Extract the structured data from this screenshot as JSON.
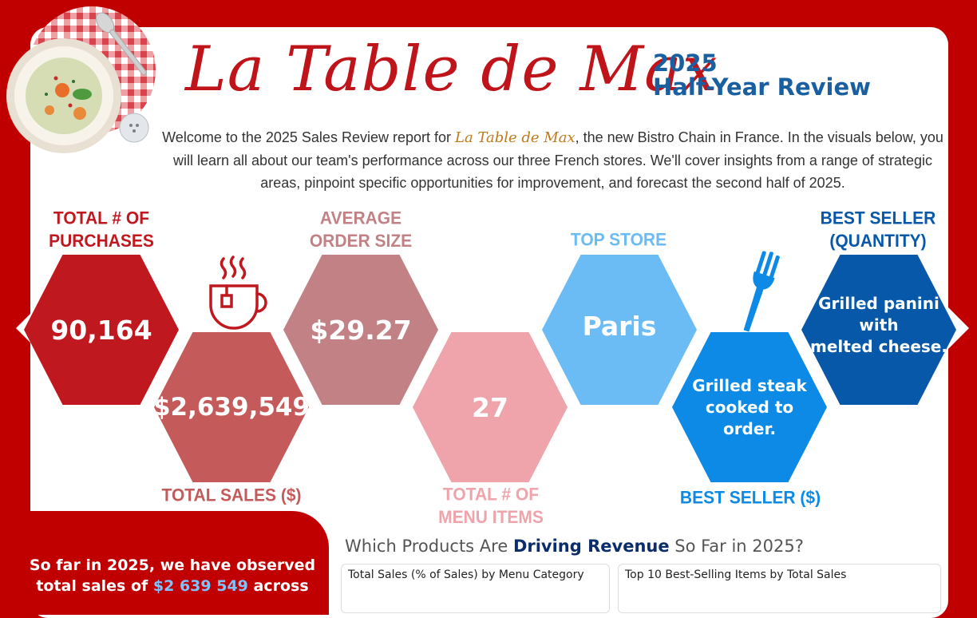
{
  "header": {
    "brand": "La Table de Max",
    "year": "2025",
    "subtitle": "Half-Year Review",
    "intro_before": "Welcome to the 2025 Sales Review report for ",
    "intro_brand": "La Table de Max",
    "intro_after": ", the new Bistro Chain in France. In the visuals below, you will learn all about our team's performance across our three French stores.  We'll cover insights from a range of strategic areas, pinpoint specific opportunities for improvement, and forecast the second half of 2025."
  },
  "kpis": {
    "purchases": {
      "label1": "TOTAL # OF",
      "label2": "PURCHASES",
      "value": "90,164",
      "color": "#c0181f"
    },
    "sales": {
      "label": "TOTAL SALES ($)",
      "value": "$2,639,549",
      "color": "#c55a5b"
    },
    "order_size": {
      "label1": "AVERAGE",
      "label2": "ORDER SIZE",
      "value": "$29.27",
      "color": "#c28285"
    },
    "menu_items": {
      "label1": "TOTAL # OF",
      "label2": "MENU ITEMS",
      "value": "27",
      "color": "#efa3aa"
    },
    "top_store": {
      "label": "TOP STORE",
      "value": "Paris",
      "color": "#6bbcf5"
    },
    "best_dollar": {
      "label": "BEST SELLER ($)",
      "value1": "Grilled steak",
      "value2": "cooked to order.",
      "color": "#0d8ae6"
    },
    "best_qty": {
      "label1": "BEST SELLER",
      "label2": "(QUANTITY)",
      "value1": "Grilled panini with",
      "value2": "melted cheese.",
      "color": "#0758a8"
    }
  },
  "summary": {
    "line1": "So far in 2025, we have observed",
    "line2_a": "total sales of ",
    "line2_value": "$2 639 549",
    "line2_b": " across"
  },
  "section": {
    "title_a": "Which Products Are ",
    "title_b": "Driving Revenue",
    "title_c": " So Far in 2025?",
    "chart1_title": "Total Sales (% of Sales) by Menu Category",
    "chart2_title": "Top 10 Best-Selling Items by Total Sales"
  },
  "icons": [
    "plate-icon",
    "tea-cup-icon",
    "fork-icon"
  ]
}
